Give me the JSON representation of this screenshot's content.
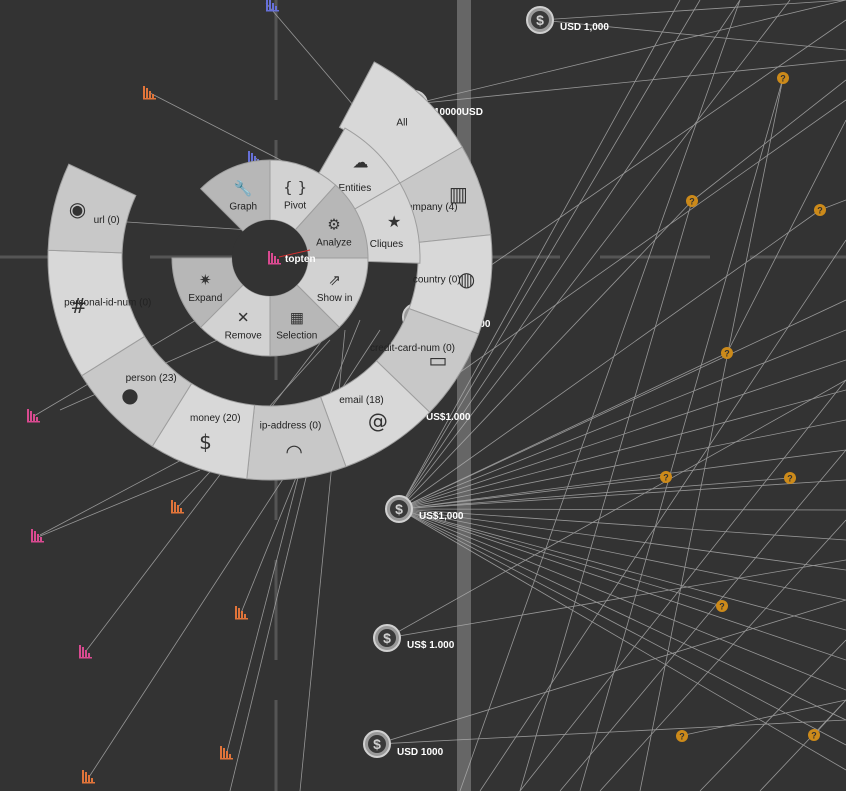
{
  "center_node": {
    "label": "topten"
  },
  "inner_ring": [
    {
      "id": "graph",
      "label": "Graph",
      "icon": "wrench-icon"
    },
    {
      "id": "pivot",
      "label": "Pivot",
      "icon": "braces-icon"
    },
    {
      "id": "analyze",
      "label": "Analyze",
      "icon": "gear-icon"
    },
    {
      "id": "showin",
      "label": "Show in",
      "icon": "share-icon"
    },
    {
      "id": "selection",
      "label": "Selection",
      "icon": "grid-icon"
    },
    {
      "id": "remove",
      "label": "Remove",
      "icon": "close-icon"
    },
    {
      "id": "expand",
      "label": "Expand",
      "icon": "starburst-icon"
    }
  ],
  "middle_ring": [
    {
      "id": "entities",
      "label": "Entities",
      "icon": "cloud-icon"
    },
    {
      "id": "cliques",
      "label": "Cliques",
      "icon": "star-icon"
    }
  ],
  "outer_ring": [
    {
      "id": "all",
      "label": "All",
      "icon": ""
    },
    {
      "id": "company",
      "label": "company (4)",
      "icon": "building-icon"
    },
    {
      "id": "country",
      "label": "country (0)",
      "icon": "globe-icon"
    },
    {
      "id": "credit-card-num",
      "label": "credit-card-num (0)",
      "icon": "credit-card-icon"
    },
    {
      "id": "email",
      "label": "email (18)",
      "icon": "at-icon"
    },
    {
      "id": "ip-address",
      "label": "ip-address (0)",
      "icon": "wifi-icon"
    },
    {
      "id": "money",
      "label": "money (20)",
      "icon": "dollar-icon"
    },
    {
      "id": "person",
      "label": "person (23)",
      "icon": "person-icon"
    },
    {
      "id": "personal-id-num",
      "label": "personal-id-num (0)",
      "icon": "hash-icon"
    },
    {
      "id": "url",
      "label": "url (0)",
      "icon": "web-icon"
    }
  ],
  "money_nodes": [
    {
      "label": "USD 1,000"
    },
    {
      "label": "10000USD"
    },
    {
      "label": "USD $ 1000"
    },
    {
      "label": "US$1.000"
    },
    {
      "label": "US$1,000"
    },
    {
      "label": "US$ 1.000"
    },
    {
      "label": "USD 1000"
    }
  ],
  "colors": {
    "background": "#333333",
    "edge": "#b8b8b8",
    "guide": "#555555",
    "inner_ring": "#d2d2d2",
    "inner_ring_dark": "#b7b7b7",
    "outer_ring": "#c8c8c8",
    "outer_ring_light": "#d8d8d8",
    "unknown_node": "#cc8a1a",
    "document_orange": "#e0743a",
    "document_pink": "#d94a90",
    "document_blue": "#6670d8"
  }
}
